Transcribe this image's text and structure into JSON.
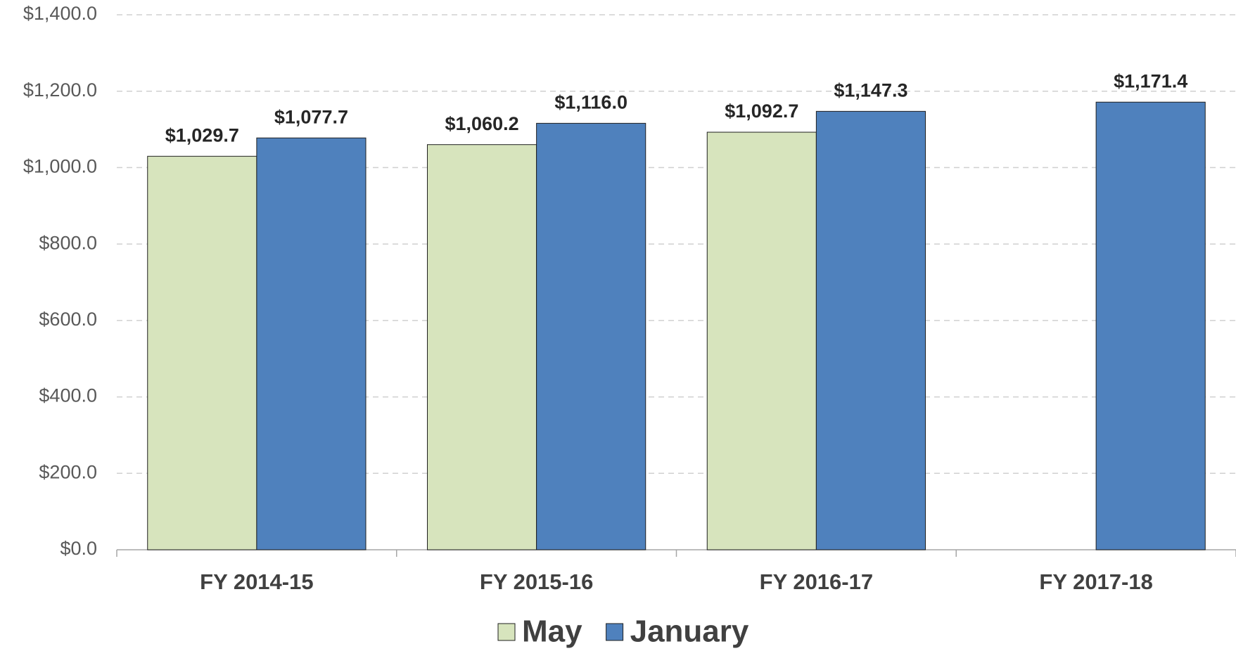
{
  "chart_data": {
    "type": "bar",
    "categories": [
      "FY 2014-15",
      "FY 2015-16",
      "FY 2016-17",
      "FY 2017-18"
    ],
    "series": [
      {
        "name": "May",
        "color": "#d7e4bd",
        "values": [
          1029.7,
          1060.2,
          1092.7,
          null
        ],
        "value_labels": [
          "$1,029.7",
          "$1,060.2",
          "$1,092.7",
          null
        ]
      },
      {
        "name": "January",
        "color": "#4f81bd",
        "values": [
          1077.7,
          1116.0,
          1147.3,
          1171.4
        ],
        "value_labels": [
          "$1,077.7",
          "$1,116.0",
          "$1,147.3",
          "$1,171.4"
        ]
      }
    ],
    "ylim": [
      0,
      1400
    ],
    "yticks": [
      {
        "value": 0,
        "label": "$0.0"
      },
      {
        "value": 200,
        "label": "$200.0"
      },
      {
        "value": 400,
        "label": "$400.0"
      },
      {
        "value": 600,
        "label": "$600.0"
      },
      {
        "value": 800,
        "label": "$800.0"
      },
      {
        "value": 1000,
        "label": "$1,000.0"
      },
      {
        "value": 1200,
        "label": "$1,200.0"
      },
      {
        "value": 1400,
        "label": "$1,400.0"
      }
    ],
    "grid": true,
    "legend": "bottom"
  }
}
